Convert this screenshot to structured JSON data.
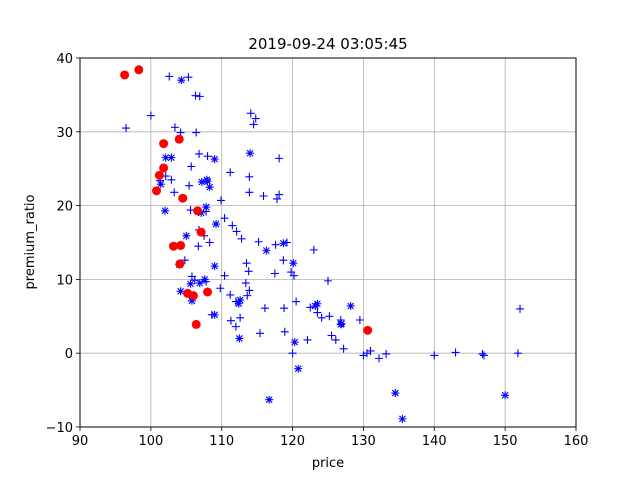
{
  "chart_data": {
    "type": "scatter",
    "title": "2019-09-24 03:05:45",
    "xlabel": "price",
    "ylabel": "premium_ratio",
    "xlim": [
      90,
      160
    ],
    "ylim": [
      -10,
      40
    ],
    "xticks": [
      "90",
      "100",
      "110",
      "120",
      "130",
      "140",
      "150",
      "160"
    ],
    "yticks": [
      "−10",
      "0",
      "10",
      "20",
      "30",
      "40"
    ],
    "grid": true,
    "series": [
      {
        "marker": "plus",
        "color": "#0000ff",
        "points": [
          [
            96.5,
            30.5
          ],
          [
            100.0,
            32.2
          ],
          [
            102.6,
            37.5
          ],
          [
            105.3,
            37.4
          ],
          [
            106.3,
            34.9
          ],
          [
            106.9,
            34.8
          ],
          [
            103.4,
            30.6
          ],
          [
            104.2,
            29.9
          ],
          [
            106.4,
            29.9
          ],
          [
            114.1,
            32.5
          ],
          [
            114.8,
            31.8
          ],
          [
            114.5,
            31.0
          ],
          [
            101.3,
            23.4
          ],
          [
            102.1,
            24.0
          ],
          [
            102.9,
            23.5
          ],
          [
            103.3,
            21.8
          ],
          [
            105.7,
            25.3
          ],
          [
            106.8,
            27.0
          ],
          [
            105.4,
            22.7
          ],
          [
            108.0,
            26.7
          ],
          [
            109.9,
            20.7
          ],
          [
            111.2,
            24.5
          ],
          [
            113.9,
            23.9
          ],
          [
            113.9,
            21.8
          ],
          [
            115.9,
            21.3
          ],
          [
            117.8,
            20.9
          ],
          [
            118.1,
            21.5
          ],
          [
            118.1,
            26.4
          ],
          [
            105.6,
            19.4
          ],
          [
            107.8,
            19.2
          ],
          [
            106.8,
            16.7
          ],
          [
            107.5,
            15.9
          ],
          [
            110.4,
            18.3
          ],
          [
            111.5,
            17.3
          ],
          [
            112.1,
            16.5
          ],
          [
            112.8,
            15.5
          ],
          [
            106.7,
            14.5
          ],
          [
            108.3,
            15.0
          ],
          [
            115.2,
            15.1
          ],
          [
            117.6,
            14.7
          ],
          [
            119.2,
            15.0
          ],
          [
            119.8,
            11.0
          ],
          [
            120.2,
            10.5
          ],
          [
            117.5,
            10.8
          ],
          [
            118.7,
            12.6
          ],
          [
            113.5,
            12.2
          ],
          [
            113.8,
            11.1
          ],
          [
            110.4,
            10.5
          ],
          [
            104.8,
            12.6
          ],
          [
            105.8,
            10.4
          ],
          [
            106.2,
            9.9
          ],
          [
            107.8,
            9.7
          ],
          [
            109.8,
            8.8
          ],
          [
            113.4,
            9.5
          ],
          [
            113.9,
            8.5
          ],
          [
            111.2,
            7.9
          ],
          [
            112.0,
            7.0
          ],
          [
            113.6,
            7.8
          ],
          [
            116.1,
            6.1
          ],
          [
            118.8,
            6.1
          ],
          [
            120.5,
            7.0
          ],
          [
            123.0,
            14.0
          ],
          [
            125.0,
            9.8
          ],
          [
            122.5,
            6.2
          ],
          [
            123.5,
            5.5
          ],
          [
            124.1,
            4.8
          ],
          [
            125.2,
            5.0
          ],
          [
            126.8,
            4.5
          ],
          [
            129.5,
            4.5
          ],
          [
            125.5,
            2.4
          ],
          [
            126.1,
            1.8
          ],
          [
            127.2,
            0.6
          ],
          [
            122.1,
            1.8
          ],
          [
            120.0,
            0.0
          ],
          [
            130.0,
            -0.3
          ],
          [
            131.0,
            0.3
          ],
          [
            130.5,
            0.0
          ],
          [
            132.2,
            -0.7
          ],
          [
            133.2,
            -0.1
          ],
          [
            140.0,
            -0.3
          ],
          [
            143.0,
            0.1
          ],
          [
            146.8,
            -0.1
          ],
          [
            147.0,
            -0.3
          ],
          [
            151.8,
            0.0
          ],
          [
            152.1,
            6.0
          ],
          [
            111.3,
            4.4
          ],
          [
            112.0,
            3.6
          ],
          [
            112.6,
            4.8
          ],
          [
            115.4,
            2.7
          ],
          [
            118.9,
            2.9
          ],
          [
            108.6,
            5.2
          ],
          [
            105.5,
            7.8
          ]
        ]
      },
      {
        "marker": "x",
        "color": "#0000ff",
        "points": [
          [
            104.3,
            37.0
          ],
          [
            102.1,
            26.5
          ],
          [
            102.9,
            26.5
          ],
          [
            109.0,
            26.3
          ],
          [
            114.0,
            27.1
          ],
          [
            101.4,
            22.9
          ],
          [
            107.2,
            23.2
          ],
          [
            107.9,
            23.5
          ],
          [
            108.3,
            22.5
          ],
          [
            108.0,
            23.3
          ],
          [
            102.0,
            19.3
          ],
          [
            107.1,
            19.0
          ],
          [
            107.8,
            19.8
          ],
          [
            109.2,
            17.5
          ],
          [
            105.0,
            15.9
          ],
          [
            116.3,
            13.9
          ],
          [
            118.7,
            14.9
          ],
          [
            120.1,
            12.2
          ],
          [
            109.0,
            11.8
          ],
          [
            104.0,
            12.0
          ],
          [
            107.6,
            10.0
          ],
          [
            105.6,
            9.4
          ],
          [
            106.9,
            9.5
          ],
          [
            104.2,
            8.4
          ],
          [
            105.8,
            7.1
          ],
          [
            109.0,
            5.2
          ],
          [
            112.4,
            6.7
          ],
          [
            112.6,
            7.2
          ],
          [
            112.5,
            2.0
          ],
          [
            123.2,
            6.4
          ],
          [
            123.5,
            6.7
          ],
          [
            128.2,
            6.4
          ],
          [
            126.8,
            3.9
          ],
          [
            126.9,
            4.0
          ],
          [
            120.3,
            1.5
          ],
          [
            120.8,
            -2.1
          ],
          [
            116.7,
            -6.3
          ],
          [
            134.5,
            -5.4
          ],
          [
            135.5,
            -8.9
          ],
          [
            150.0,
            -5.7
          ]
        ]
      },
      {
        "marker": "circle",
        "color": "#ff0000",
        "points": [
          [
            96.3,
            37.7
          ],
          [
            98.3,
            38.4
          ],
          [
            101.8,
            28.4
          ],
          [
            104.0,
            29.0
          ],
          [
            101.8,
            25.1
          ],
          [
            101.2,
            24.1
          ],
          [
            100.8,
            22.0
          ],
          [
            104.5,
            21.0
          ],
          [
            106.6,
            19.3
          ],
          [
            107.1,
            16.4
          ],
          [
            103.2,
            14.5
          ],
          [
            104.2,
            14.6
          ],
          [
            104.1,
            12.1
          ],
          [
            105.2,
            8.1
          ],
          [
            106.0,
            7.8
          ],
          [
            108.0,
            8.3
          ],
          [
            106.4,
            3.9
          ],
          [
            130.6,
            3.1
          ]
        ]
      }
    ]
  }
}
